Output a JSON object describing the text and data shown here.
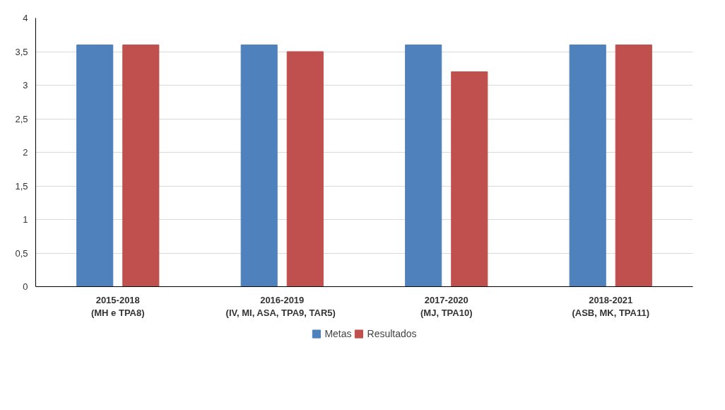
{
  "chart_data": {
    "type": "bar",
    "categories": [
      "2015-2018\n(MH e TPA8)",
      "2016-2019\n(IV,  MI, ASA, TPA9, TAR5)",
      "2017-2020\n(MJ, TPA10)",
      "2018-2021\n(ASB, MK, TPA11)"
    ],
    "series": [
      {
        "name": "Metas",
        "color": "#4f81bd",
        "values": [
          3.6,
          3.6,
          3.6,
          3.6
        ]
      },
      {
        "name": "Resultados",
        "color": "#c0504d",
        "values": [
          3.6,
          3.5,
          3.2,
          3.6
        ]
      }
    ],
    "ylim": [
      0,
      4
    ],
    "yticks": [
      0,
      {
        "value": 0.5,
        "label": "0,5"
      },
      1,
      {
        "value": 1.5,
        "label": "1,5"
      },
      2,
      {
        "value": 2.5,
        "label": "2,5"
      },
      3,
      {
        "value": 3.5,
        "label": "3,5"
      },
      4
    ],
    "grid": "y",
    "legend": "bottom"
  }
}
